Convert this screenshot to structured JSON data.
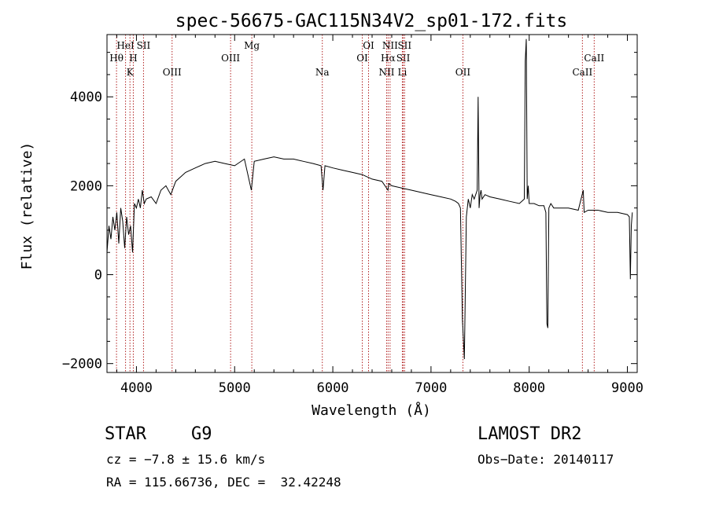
{
  "chart_data": {
    "type": "line",
    "title": "spec-56675-GAC115N34V2_sp01-172.fits",
    "xlabel": "Wavelength (Å)",
    "ylabel": "Flux (relative)",
    "xlim": [
      3700,
      9100
    ],
    "ylim": [
      -2200,
      5400
    ],
    "xticks": [
      4000,
      5000,
      6000,
      7000,
      8000,
      9000
    ],
    "yticks": [
      -2000,
      0,
      2000,
      4000
    ],
    "xtick_labels": [
      "4000",
      "5000",
      "6000",
      "7000",
      "8000",
      "9000"
    ],
    "ytick_labels": [
      "−2000",
      "0",
      "2000",
      "4000"
    ],
    "series": [
      {
        "x": [
          3700,
          3720,
          3740,
          3760,
          3780,
          3800,
          3820,
          3840,
          3860,
          3880,
          3900,
          3920,
          3940,
          3960,
          3980,
          4000,
          4020,
          4040,
          4060,
          4080,
          4100,
          4150,
          4200,
          4250,
          4300,
          4350,
          4400,
          4450,
          4500,
          4600,
          4700,
          4800,
          4900,
          5000,
          5100,
          5170,
          5200,
          5300,
          5400,
          5500,
          5600,
          5700,
          5800,
          5880,
          5900,
          5920,
          6000,
          6100,
          6200,
          6300,
          6400,
          6500,
          6562,
          6570,
          6600,
          6700,
          6800,
          6900,
          7000,
          7100,
          7200,
          7250,
          7280,
          7300,
          7320,
          7340,
          7360,
          7380,
          7400,
          7420,
          7440,
          7470,
          7480,
          7490,
          7500,
          7510,
          7520,
          7550,
          7600,
          7700,
          7800,
          7900,
          7950,
          7960,
          7970,
          7980,
          7990,
          8000,
          8050,
          8100,
          8150,
          8170,
          8180,
          8190,
          8200,
          8220,
          8250,
          8300,
          8400,
          8500,
          8550,
          8560,
          8600,
          8700,
          8800,
          8900,
          9000,
          9020,
          9030,
          9040,
          9050
        ],
        "y": [
          500,
          1100,
          800,
          1300,
          1000,
          1400,
          700,
          1500,
          1200,
          600,
          1300,
          900,
          1100,
          500,
          1600,
          1500,
          1700,
          1500,
          1900,
          1600,
          1700,
          1750,
          1600,
          1900,
          2000,
          1800,
          2100,
          2200,
          2300,
          2400,
          2500,
          2550,
          2500,
          2450,
          2600,
          1900,
          2550,
          2600,
          2650,
          2600,
          2600,
          2550,
          2500,
          2450,
          1900,
          2450,
          2400,
          2350,
          2300,
          2250,
          2150,
          2100,
          1900,
          2050,
          2000,
          1950,
          1900,
          1850,
          1800,
          1750,
          1700,
          1650,
          1600,
          1500,
          -1000,
          -1900,
          1300,
          1700,
          1500,
          1800,
          1700,
          1900,
          4000,
          1500,
          1800,
          1900,
          1700,
          1800,
          1750,
          1700,
          1650,
          1600,
          1700,
          4800,
          5300,
          1700,
          2000,
          1600,
          1600,
          1550,
          1550,
          1400,
          -1100,
          -1200,
          1500,
          1600,
          1500,
          1500,
          1500,
          1450,
          1900,
          1400,
          1450,
          1450,
          1400,
          1400,
          1350,
          1300,
          -100,
          1100,
          1400
        ]
      }
    ],
    "vlines": [
      {
        "x": 3797,
        "label": "Hθ",
        "row": 2
      },
      {
        "x": 3889,
        "label": "HeI",
        "row": 1
      },
      {
        "x": 3934,
        "label": "K",
        "row": 3
      },
      {
        "x": 3968,
        "label": "H",
        "row": 2
      },
      {
        "x": 4072,
        "label": "SII",
        "row": 1
      },
      {
        "x": 4363,
        "label": "OIII",
        "row": 3
      },
      {
        "x": 4959,
        "label": "OIII",
        "row": 2
      },
      {
        "x": 5175,
        "label": "Mg",
        "row": 1
      },
      {
        "x": 5893,
        "label": "Na",
        "row": 3
      },
      {
        "x": 6300,
        "label": "OI",
        "row": 2
      },
      {
        "x": 6364,
        "label": "OI",
        "row": 1
      },
      {
        "x": 6548,
        "label": "NII",
        "row": 3
      },
      {
        "x": 6563,
        "label": "Hα",
        "row": 2
      },
      {
        "x": 6583,
        "label": "NII",
        "row": 1
      },
      {
        "x": 6708,
        "label": "Li",
        "row": 3
      },
      {
        "x": 6717,
        "label": "SII",
        "row": 2
      },
      {
        "x": 6731,
        "label": "SII",
        "row": 1
      },
      {
        "x": 7325,
        "label": "OII",
        "row": 3
      },
      {
        "x": 8542,
        "label": "CaII",
        "row": 3
      },
      {
        "x": 8662,
        "label": "CaII",
        "row": 2
      }
    ]
  },
  "info": {
    "class_label": "STAR",
    "subclass": "G9",
    "survey": "LAMOST DR2",
    "redshift": "cz = −7.8 ± 15.6 km/s",
    "obs_date": "Obs−Date: 20140117",
    "coords": "RA = 115.66736, DEC =  32.42248"
  }
}
